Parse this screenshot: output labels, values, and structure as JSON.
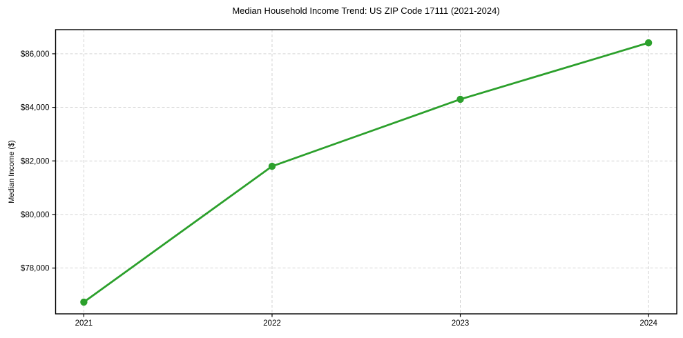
{
  "chart_data": {
    "type": "line",
    "title": "Median Household Income Trend: US ZIP Code 17111 (2021-2024)",
    "xlabel": "",
    "ylabel": "Median Income ($)",
    "x": [
      2021,
      2022,
      2023,
      2024
    ],
    "x_tick_labels": [
      "2021",
      "2022",
      "2023",
      "2024"
    ],
    "series": [
      {
        "name": "Median Household Income",
        "values": [
          76730,
          81800,
          84300,
          86410
        ]
      }
    ],
    "y_ticks": [
      78000,
      80000,
      82000,
      84000,
      86000
    ],
    "y_tick_labels": [
      "$78,000",
      "$80,000",
      "$82,000",
      "$84,000",
      "$86,000"
    ],
    "xlim": [
      2020.85,
      2024.15
    ],
    "ylim": [
      76290,
      86900
    ],
    "grid": true,
    "legend": "none",
    "line_color": "#2ca02c",
    "marker_color": "#2ca02c",
    "grid_color": "#cccccc",
    "spine_color": "#000000",
    "background_color": "#ffffff"
  }
}
